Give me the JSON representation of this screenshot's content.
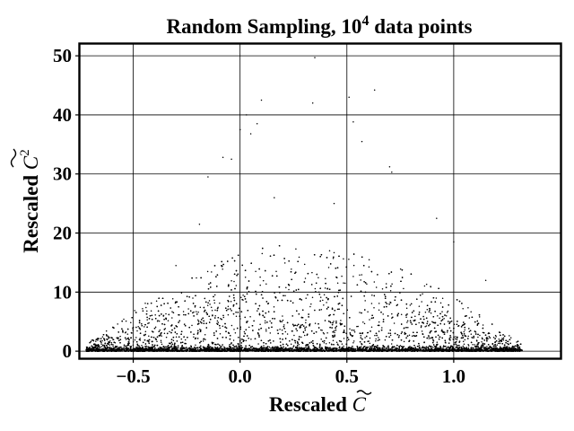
{
  "chart_data": {
    "type": "scatter",
    "title_main": "Random Sampling, 10",
    "title_sup": "4",
    "title_rest": " data points",
    "xlabel": "Rescaled ",
    "xlabel_symbol": "C",
    "ylabel": "Rescaled ",
    "ylabel_symbol": "C",
    "ylabel_sup": "2",
    "xlim": [
      -0.75,
      1.5
    ],
    "ylim": [
      -1.2,
      52
    ],
    "xticks": [
      -0.5,
      0.0,
      0.5,
      1.0
    ],
    "xtick_labels": [
      "−0.5",
      "0.0",
      "0.5",
      "1.0"
    ],
    "yticks": [
      0,
      10,
      20,
      30,
      40,
      50
    ],
    "ytick_labels": [
      "0",
      "10",
      "20",
      "30",
      "40",
      "50"
    ],
    "grid": true,
    "marker_color": "#000000",
    "n_points": 10000,
    "x_range_of_points": [
      -0.72,
      1.32
    ],
    "notable_points": [
      {
        "x": -0.15,
        "y": 29.5
      },
      {
        "x": -0.08,
        "y": 32.8
      },
      {
        "x": -0.04,
        "y": 32.5
      },
      {
        "x": 0.0,
        "y": 37.5
      },
      {
        "x": 0.03,
        "y": 40.0
      },
      {
        "x": 0.05,
        "y": 36.8
      },
      {
        "x": 0.08,
        "y": 38.5
      },
      {
        "x": 0.1,
        "y": 42.5
      },
      {
        "x": 0.34,
        "y": 42.0
      },
      {
        "x": 0.35,
        "y": 49.7
      },
      {
        "x": 0.51,
        "y": 43.0
      },
      {
        "x": 0.53,
        "y": 38.8
      },
      {
        "x": 0.57,
        "y": 35.5
      },
      {
        "x": 0.63,
        "y": 44.2
      },
      {
        "x": 0.7,
        "y": 31.2
      },
      {
        "x": 0.71,
        "y": 30.3
      },
      {
        "x": 0.92,
        "y": 22.5
      },
      {
        "x": 1.0,
        "y": 18.5
      },
      {
        "x": 1.15,
        "y": 12.0
      },
      {
        "x": -0.3,
        "y": 14.5
      },
      {
        "x": -0.19,
        "y": 21.5
      },
      {
        "x": 0.44,
        "y": 25.0
      },
      {
        "x": 0.16,
        "y": 26.0
      }
    ]
  }
}
